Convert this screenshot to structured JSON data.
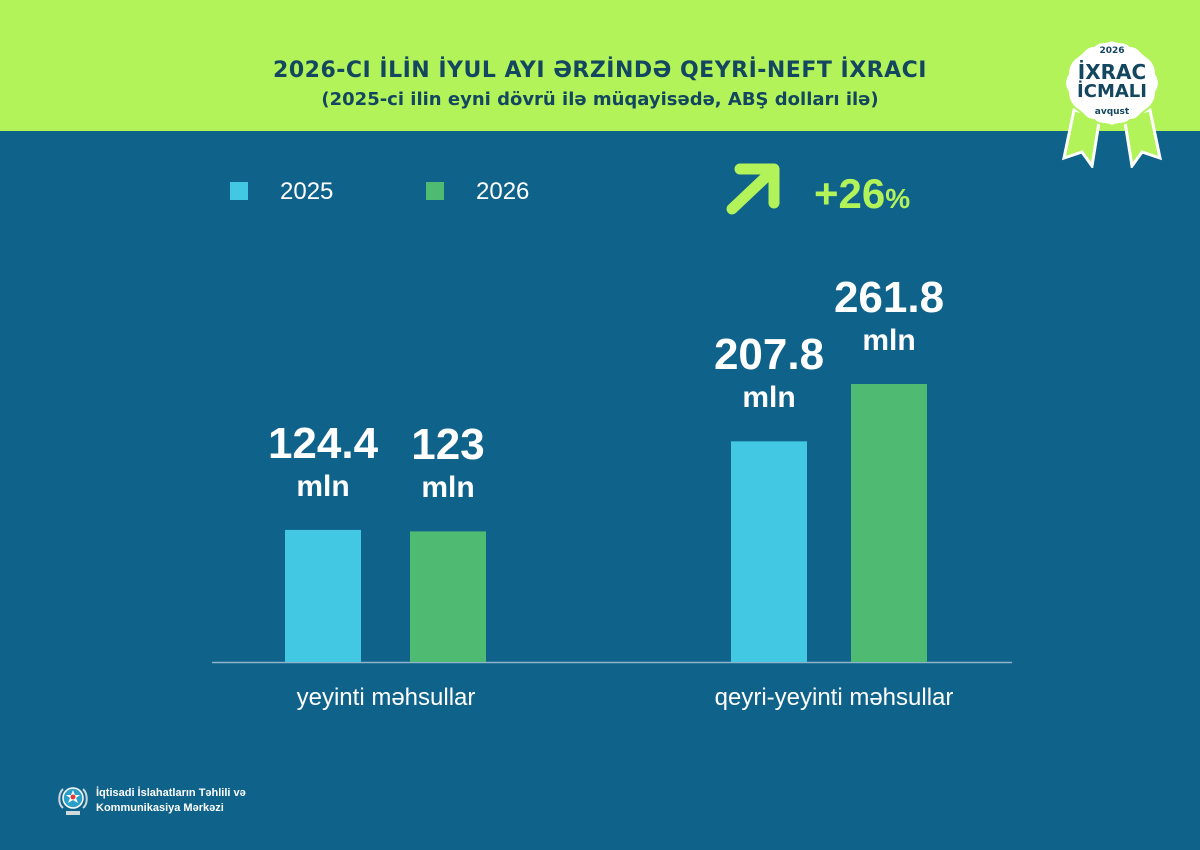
{
  "header": {
    "title": "2026-CI İLİN İYUL AYI ƏRZİNDƏ QEYRİ-NEFT İXRACI",
    "subtitle": "(2025-ci ilin eyni dövrü ilə müqayisədə, ABŞ dolları ilə)"
  },
  "badge": {
    "year": "2026",
    "line1": "İXRAC",
    "line2": "İCMALI",
    "month": "avqust"
  },
  "growth": {
    "value": "+26",
    "unit": "%",
    "icon": "arrow-up-right-icon"
  },
  "colors": {
    "background": "#0f638b",
    "header": "#b3f35a",
    "series_2025": "#42c8e2",
    "series_2026": "#4fbb72",
    "accent": "#b3f35a"
  },
  "chart_data": {
    "type": "bar",
    "categories": [
      "yeyinti məhsullar",
      "qeyri-yeyinti məhsullar"
    ],
    "series": [
      {
        "name": "2025",
        "values": [
          124.4,
          207.8
        ],
        "labels": [
          "124.4",
          "207.8"
        ]
      },
      {
        "name": "2026",
        "values": [
          123,
          261.8
        ],
        "labels": [
          "123",
          "261.8"
        ]
      }
    ],
    "value_unit": "mln",
    "title": "2026-CI İLİN İYUL AYI ƏRZİNDƏ QEYRİ-NEFT İXRACI",
    "subtitle": "(2025-ci ilin eyni dövrü ilə müqayisədə, ABŞ dolları ilə)",
    "legend_position": "top-left",
    "grid": false
  },
  "footer": {
    "line1": "İqtisadi İslahatların Təhlili və",
    "line2": "Kommunikasiya Mərkəzi",
    "logo_icon": "emblem-icon"
  }
}
